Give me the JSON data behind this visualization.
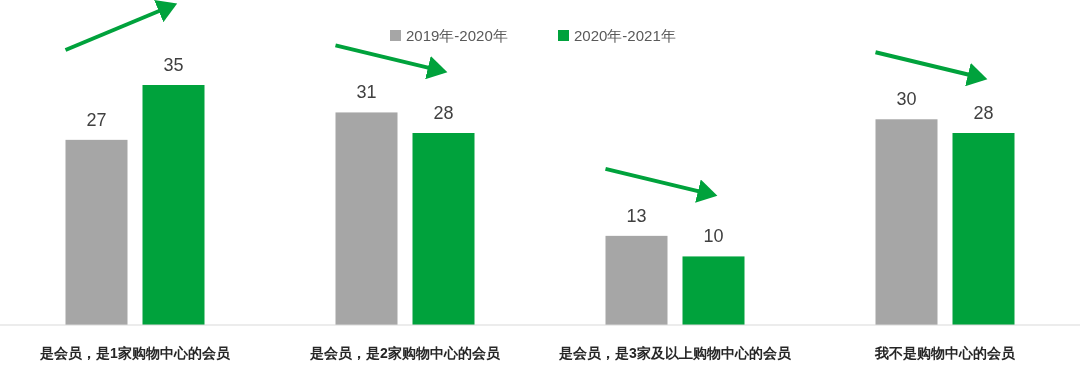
{
  "chart_data": {
    "type": "bar",
    "categories": [
      "是会员，是1家购物中心的会员",
      "是会员，是2家购物中心的会员",
      "是会员，是3家及以上购物中心的会员",
      "我不是购物中心的会员"
    ],
    "series": [
      {
        "name": "2019年-2020年",
        "color": "#a6a6a6",
        "values": [
          27,
          31,
          13,
          30
        ]
      },
      {
        "name": "2020年-2021年",
        "color": "#00a23c",
        "values": [
          35,
          28,
          10,
          28
        ]
      }
    ],
    "data_labels": true,
    "legend": "top"
  }
}
